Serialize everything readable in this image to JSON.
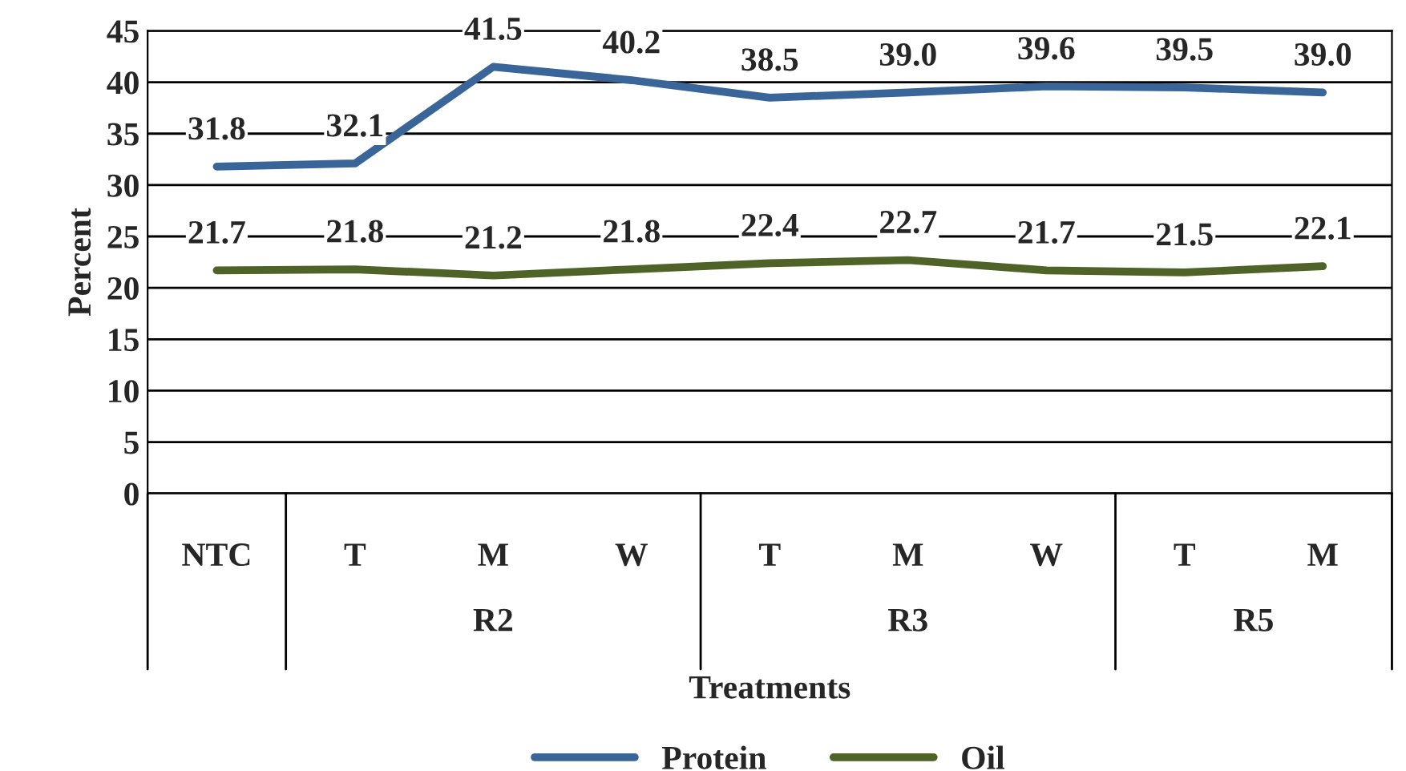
{
  "chart_data": {
    "type": "line",
    "xlabel": "Treatments",
    "ylabel": "Percent",
    "categories": [
      "NTC",
      "T",
      "M",
      "W",
      "T",
      "M",
      "W",
      "T",
      "M"
    ],
    "series": [
      {
        "name": "Protein",
        "color": "#3a6599",
        "values": [
          31.8,
          32.1,
          41.5,
          40.2,
          38.5,
          39.0,
          39.6,
          39.5,
          39.0
        ],
        "value_labels": [
          "31.8",
          "32.1",
          "41.5",
          "40.2",
          "38.5",
          "39.0",
          "39.6",
          "39.5",
          "39.0"
        ]
      },
      {
        "name": "Oil",
        "color": "#4f6228",
        "values": [
          21.7,
          21.8,
          21.2,
          21.8,
          22.4,
          22.7,
          21.7,
          21.5,
          22.1
        ],
        "value_labels": [
          "21.7",
          "21.8",
          "21.2",
          "21.8",
          "22.4",
          "22.7",
          "21.7",
          "21.5",
          "22.1"
        ]
      }
    ],
    "annotations": [
      "R2",
      "R3",
      "R5"
    ],
    "ylim": [
      0,
      45
    ],
    "yticks": [
      0,
      5,
      10,
      15,
      20,
      25,
      30,
      35,
      40,
      45
    ],
    "grid": "y",
    "legend": "bottom",
    "marker": "none",
    "line_style": "solid"
  }
}
